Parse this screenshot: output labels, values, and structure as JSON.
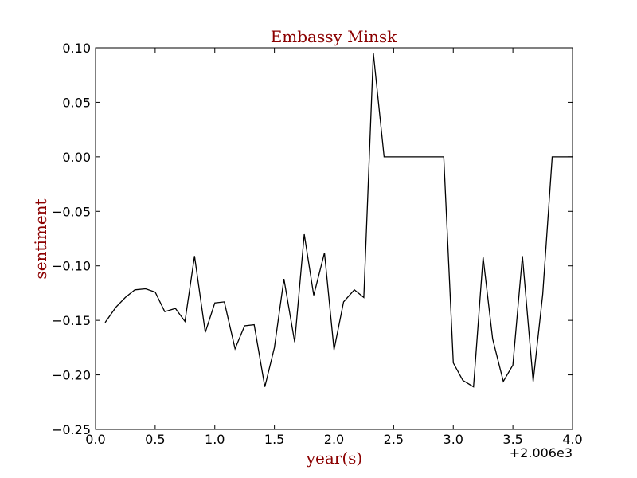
{
  "chart_data": {
    "type": "line",
    "title": "Embassy Minsk",
    "xlabel": "year(s)",
    "ylabel": "sentiment",
    "x_offset_label": "+2.006e3",
    "xlim": [
      0.0,
      4.0
    ],
    "ylim": [
      -0.25,
      0.1
    ],
    "xticks": [
      0.0,
      0.5,
      1.0,
      1.5,
      2.0,
      2.5,
      3.0,
      3.5,
      4.0
    ],
    "xtick_labels": [
      "0.0",
      "0.5",
      "1.0",
      "1.5",
      "2.0",
      "2.5",
      "3.0",
      "3.5",
      "4.0"
    ],
    "yticks": [
      0.1,
      0.05,
      0.0,
      -0.05,
      -0.1,
      -0.15,
      -0.2,
      -0.25
    ],
    "ytick_labels": [
      "0.10",
      "0.05",
      "0.00",
      "−0.05",
      "−0.10",
      "−0.15",
      "−0.20",
      "−0.25"
    ],
    "grid": false,
    "colors": {
      "line": "#000000",
      "title": "#8b0000",
      "axis_label": "#8b0000"
    },
    "series": [
      {
        "x": [
          0.08,
          0.17,
          0.25,
          0.33,
          0.42,
          0.5,
          0.58,
          0.67,
          0.75,
          0.83,
          0.92,
          1.0,
          1.08,
          1.17,
          1.25,
          1.33,
          1.42,
          1.5,
          1.58,
          1.67,
          1.75,
          1.83,
          1.92,
          2.0,
          2.08,
          2.17,
          2.25,
          2.33,
          2.42,
          2.5,
          2.58,
          2.67,
          2.75,
          2.83,
          2.92,
          3.0,
          3.08,
          3.17,
          3.25,
          3.33,
          3.42,
          3.5,
          3.58,
          3.67,
          3.75,
          3.83,
          3.92,
          4.0
        ],
        "y": [
          -0.152,
          -0.138,
          -0.129,
          -0.122,
          -0.121,
          -0.124,
          -0.142,
          -0.139,
          -0.151,
          -0.091,
          -0.161,
          -0.134,
          -0.133,
          -0.176,
          -0.155,
          -0.154,
          -0.211,
          -0.175,
          -0.112,
          -0.17,
          -0.071,
          -0.127,
          -0.088,
          -0.177,
          -0.133,
          -0.122,
          -0.129,
          0.095,
          0.0,
          0.0,
          0.0,
          0.0,
          0.0,
          0.0,
          0.0,
          -0.189,
          -0.205,
          -0.211,
          -0.092,
          -0.167,
          -0.206,
          -0.191,
          -0.091,
          -0.206,
          -0.126,
          0.0,
          0.0,
          0.0
        ]
      }
    ]
  }
}
